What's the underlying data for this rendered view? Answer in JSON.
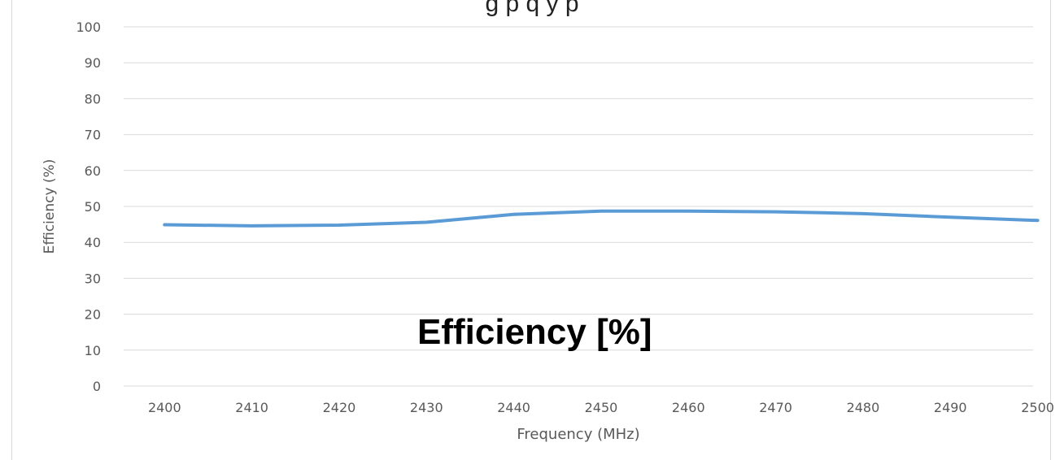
{
  "page": {
    "title_partial": "g       p                q  y  p",
    "overlay_label": "Efficiency [%]"
  },
  "chart_data": {
    "type": "line",
    "xlabel": "Frequency (MHz)",
    "ylabel": "Efficiency (%)",
    "x": [
      2400,
      2410,
      2420,
      2430,
      2440,
      2450,
      2460,
      2470,
      2480,
      2490,
      2500
    ],
    "series": [
      {
        "values": [
          44.9,
          44.6,
          44.8,
          45.6,
          47.8,
          48.7,
          48.7,
          48.5,
          48.0,
          47.0,
          46.1
        ]
      }
    ],
    "xlim": [
      2400,
      2500
    ],
    "ylim": [
      0,
      100
    ],
    "yticks": [
      0,
      10,
      20,
      30,
      40,
      50,
      60,
      70,
      80,
      90,
      100
    ],
    "xticks": [
      2400,
      2410,
      2420,
      2430,
      2440,
      2450,
      2460,
      2470,
      2480,
      2490,
      2500
    ],
    "grid": true,
    "line_color": "#5b9bd5",
    "grid_color": "#d9d9d9"
  }
}
